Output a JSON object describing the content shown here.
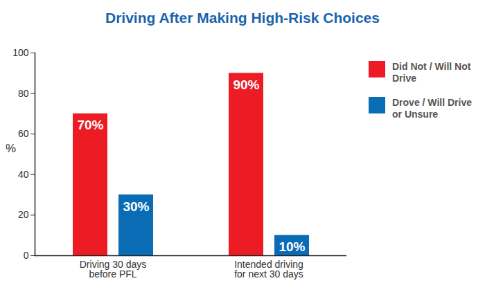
{
  "chart_data": {
    "type": "bar",
    "title": "Driving After Making High-Risk Choices",
    "y_label": "%",
    "categories": [
      "Driving 30 days before PFL",
      "Intended driving for next 30 days"
    ],
    "series": [
      {
        "name": "Did Not / Will Not Drive",
        "color": "#ed1c24",
        "values": [
          70,
          90
        ],
        "value_labels": [
          "70%",
          "90%"
        ]
      },
      {
        "name": "Drove / Will Drive or Unsure",
        "color": "#0a6cb5",
        "values": [
          30,
          10
        ],
        "value_labels": [
          "30%",
          "10%"
        ]
      }
    ],
    "ylim": [
      0,
      100
    ],
    "yticks": [
      0,
      20,
      40,
      60,
      80,
      100
    ],
    "grid": false,
    "legend": "right",
    "data_labels": true
  }
}
